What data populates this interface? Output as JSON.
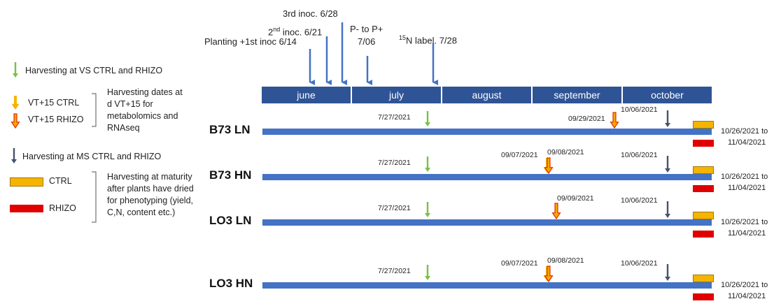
{
  "colors": {
    "month_bar": "#2f5496",
    "timeline": "#4472c4",
    "arrow_vs": "#7ac142",
    "arrow_ctrl": "#f5b400",
    "arrow_rhizo_fill": "#f5a800",
    "arrow_rhizo_outline": "#e03000",
    "arrow_ms": "#44546a",
    "event_arrow": "#4472c4",
    "ctrl_box": "#f5b400",
    "rhizo_box": "#e00000"
  },
  "events": {
    "planting": "Planting +1st inoc 6/14",
    "inoc2_pre": "2",
    "inoc2_sup": "nd",
    "inoc2_post": " inoc. 6/21",
    "inoc3": "3rd inoc. 6/28",
    "p_line1": "P- to P+",
    "p_line2": "7/06",
    "n_sup": "15",
    "n_post": "N label. 7/28"
  },
  "months": [
    "june",
    "july",
    "august",
    "september",
    "october"
  ],
  "legend": {
    "vs": "Harvesting at VS CTRL and RHIZO",
    "vt_ctrl": "VT+15 CTRL",
    "vt_rhizo": "VT+15 RHIZO",
    "vt_note": "Harvesting dates at d VT+15 for metabolomics and RNAseq",
    "ms": "Harvesting at MS CTRL and RHIZO",
    "ctrl": "CTRL",
    "rhizo": "RHIZO",
    "maturity_note": "Harvesting at maturity after plants have dried for phenotyping (yield, C,N, content etc.)"
  },
  "rows": [
    {
      "label": "B73 LN",
      "vs_date": "7/27/2021",
      "vt_dates": [
        "09/29/2021"
      ],
      "ms_date": "10/06/2021",
      "range_1": "10/26/2021 to",
      "range_2": "11/04/2021"
    },
    {
      "label": "B73 HN",
      "vs_date": "7/27/2021",
      "vt_dates": [
        "09/07/2021",
        "09/08/2021"
      ],
      "ms_date": "10/06/2021",
      "range_1": "10/26/2021 to",
      "range_2": "11/04/2021"
    },
    {
      "label": "LO3 LN",
      "vs_date": "7/27/2021",
      "vt_dates": [
        "09/09/2021"
      ],
      "ms_date": "10/06/2021",
      "range_1": "10/26/2021 to",
      "range_2": "11/04/2021"
    },
    {
      "label": "LO3 HN",
      "vs_date": "7/27/2021",
      "vt_dates": [
        "09/07/2021",
        "09/08/2021"
      ],
      "ms_date": "10/06/2021",
      "range_1": "10/26/2021 to",
      "range_2": "11/04/2021"
    }
  ]
}
